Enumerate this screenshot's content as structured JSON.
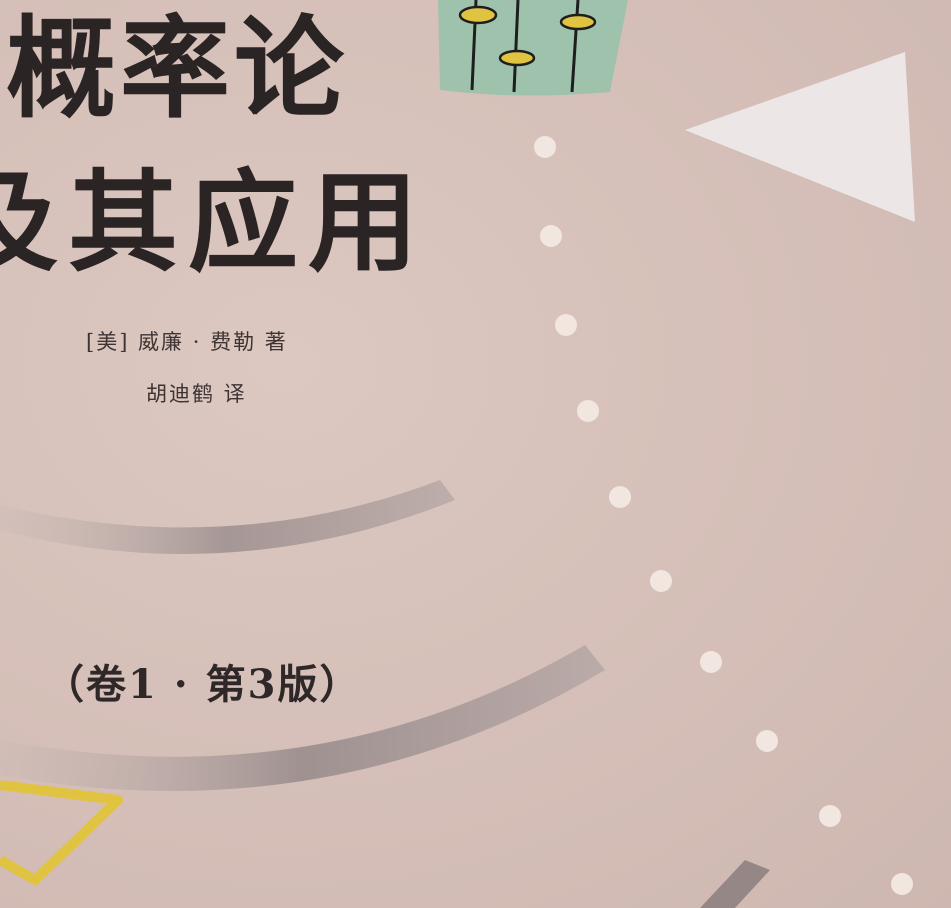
{
  "cover": {
    "title_line_1": "概率论",
    "title_line_2": "及其应用",
    "author_credit": "[美] 威廉 · 费勒 著",
    "translator_credit": "胡迪鹤 译",
    "edition": "（卷1 · 第3版）"
  },
  "colors": {
    "background": "#d8c4bd",
    "title_text": "#2a2424",
    "green_panel": "#9fc2ad",
    "yellow_accent": "#e0c441",
    "dots": "#f2e6e0",
    "arcs": "#a89a98",
    "triangle": "#ece6e6"
  },
  "decorations": {
    "icons": [
      "abacus-slider-icon",
      "triangle-shape",
      "dotted-arc",
      "gray-arc",
      "yellow-outline-shape"
    ]
  }
}
